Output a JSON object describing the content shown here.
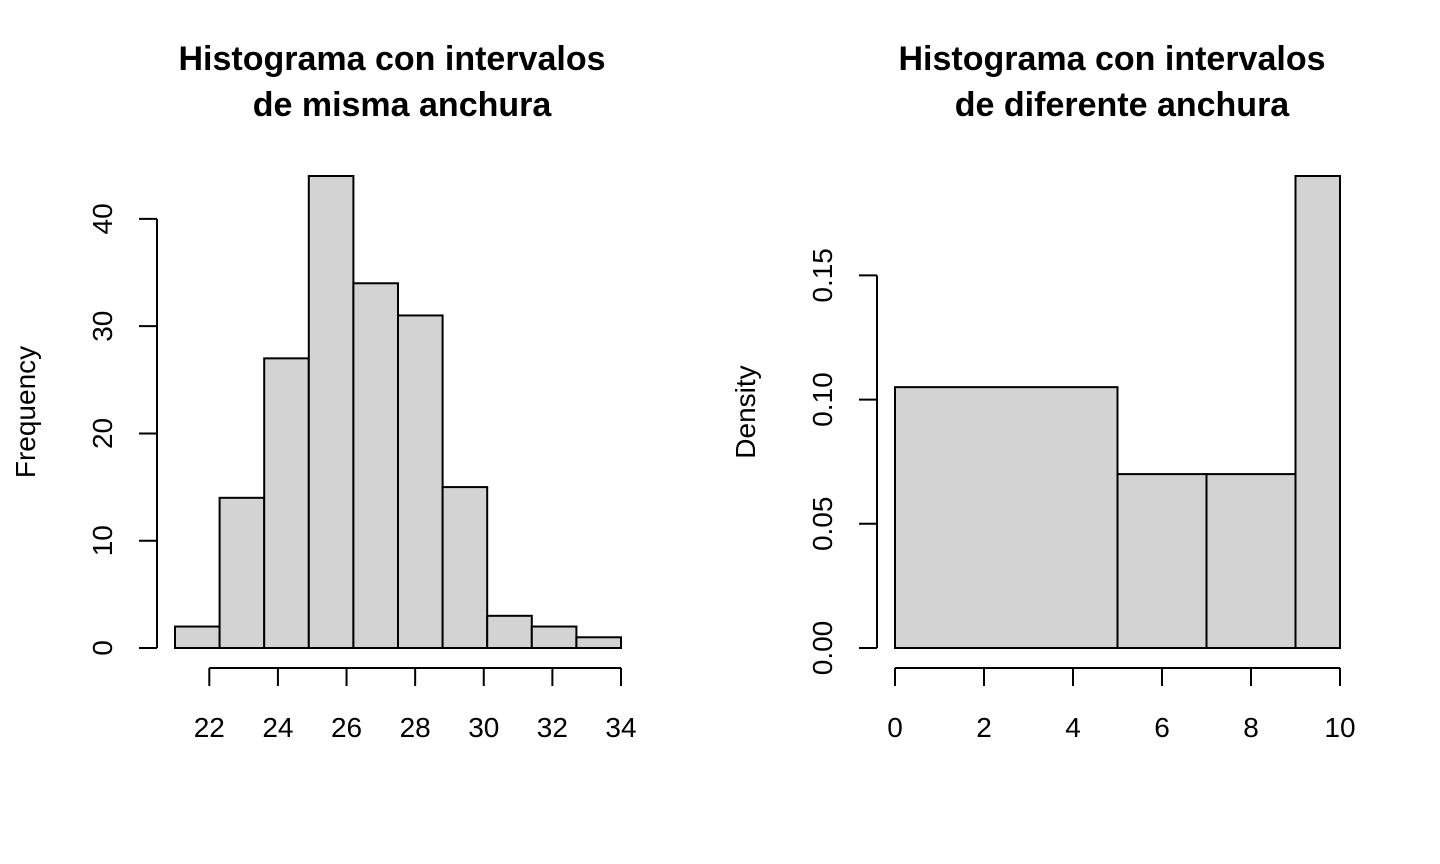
{
  "chart_data": [
    {
      "type": "bar",
      "title_lines": [
        "Histograma con intervalos",
        "de misma anchura"
      ],
      "xlabel": "",
      "ylabel": "Frequency",
      "bins": [
        {
          "from": 21,
          "to": 22.3,
          "value": 2
        },
        {
          "from": 22.3,
          "to": 23.6,
          "value": 14
        },
        {
          "from": 23.6,
          "to": 24.9,
          "value": 27
        },
        {
          "from": 24.9,
          "to": 26.2,
          "value": 44
        },
        {
          "from": 26.2,
          "to": 27.5,
          "value": 34
        },
        {
          "from": 27.5,
          "to": 28.8,
          "value": 31
        },
        {
          "from": 28.8,
          "to": 30.1,
          "value": 15
        },
        {
          "from": 30.1,
          "to": 31.4,
          "value": 3
        },
        {
          "from": 31.4,
          "to": 32.7,
          "value": 2
        },
        {
          "from": 32.7,
          "to": 34,
          "value": 1
        }
      ],
      "xticks": [
        22,
        24,
        26,
        28,
        30,
        32,
        34
      ],
      "xtick_labels": [
        "22",
        "24",
        "26",
        "28",
        "30",
        "32",
        "34"
      ],
      "yticks": [
        0,
        10,
        20,
        30,
        40
      ],
      "ytick_labels": [
        "0",
        "10",
        "20",
        "30",
        "40"
      ],
      "xlim": [
        21,
        34
      ],
      "ylim": [
        0,
        44
      ],
      "grid": false
    },
    {
      "type": "bar",
      "title_lines": [
        "Histograma con intervalos",
        "de diferente anchura"
      ],
      "xlabel": "",
      "ylabel": "Density",
      "bins": [
        {
          "from": 0,
          "to": 5,
          "value": 0.105
        },
        {
          "from": 5,
          "to": 7,
          "value": 0.07
        },
        {
          "from": 7,
          "to": 9,
          "value": 0.07
        },
        {
          "from": 9,
          "to": 10,
          "value": 0.19
        }
      ],
      "xticks": [
        0,
        2,
        4,
        6,
        8,
        10
      ],
      "xtick_labels": [
        "0",
        "2",
        "4",
        "6",
        "8",
        "10"
      ],
      "yticks": [
        0,
        0.05,
        0.1,
        0.15
      ],
      "ytick_labels": [
        "0.00",
        "0.05",
        "0.10",
        "0.15"
      ],
      "xlim": [
        0,
        10
      ],
      "ylim": [
        0,
        0.19
      ],
      "grid": false
    }
  ]
}
